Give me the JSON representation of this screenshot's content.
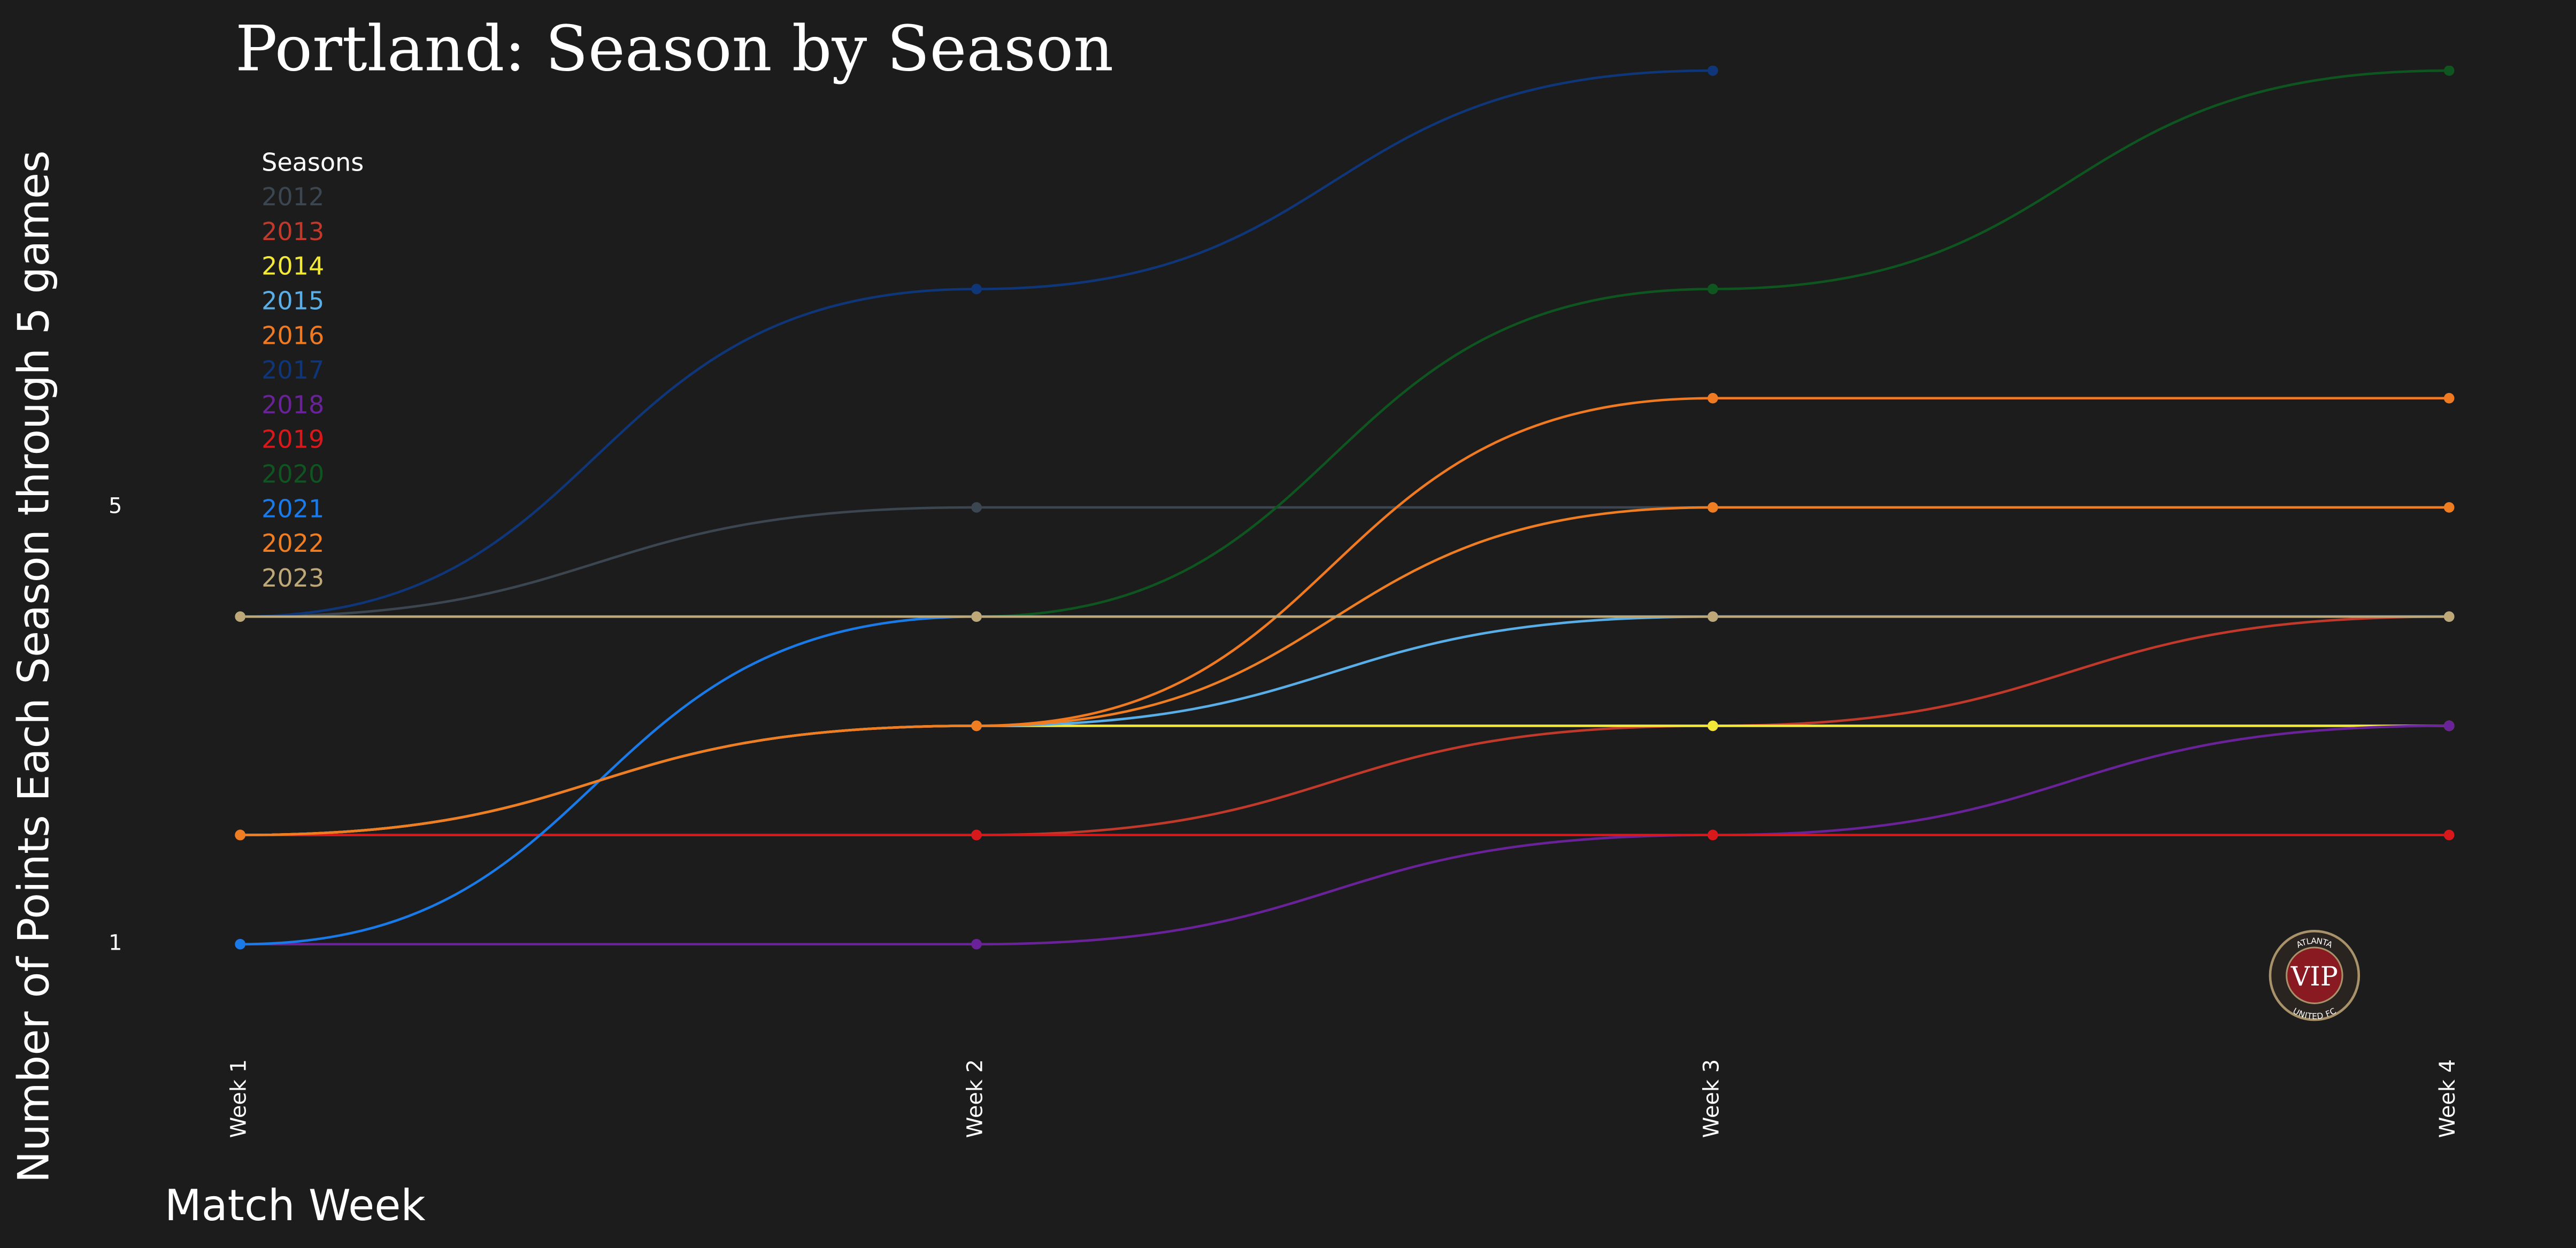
{
  "chart_data": {
    "type": "line",
    "title": "Portland: Season by Season",
    "x_label": "Match Week",
    "y_label": "Number of Points Each Season through 5 games",
    "legend_title": "Seasons",
    "legend_position": "upper left",
    "categories": [
      "Week 1",
      "Week 2",
      "Week 3",
      "Week 4"
    ],
    "ylim": [
      0,
      9
    ],
    "yticks": [
      1,
      5
    ],
    "grid": false,
    "logo_text": "VIP",
    "logo_ring_top": "ATLANTA",
    "logo_ring_bottom": "UNITED FC",
    "series": [
      {
        "name": "2012",
        "color": "#3b4650",
        "values": [
          4,
          5,
          5,
          null
        ]
      },
      {
        "name": "2013",
        "color": "#c0392b",
        "values": [
          2,
          2,
          3,
          4
        ]
      },
      {
        "name": "2014",
        "color": "#f2e83a",
        "values": [
          2,
          3,
          3,
          3
        ]
      },
      {
        "name": "2015",
        "color": "#5aaee8",
        "values": [
          2,
          3,
          4,
          4
        ]
      },
      {
        "name": "2016",
        "color": "#f07a22",
        "values": [
          2,
          3,
          6,
          6
        ]
      },
      {
        "name": "2017",
        "color": "#0f3678",
        "values": [
          4,
          7,
          9,
          null
        ]
      },
      {
        "name": "2018",
        "color": "#6a2299",
        "values": [
          1,
          1,
          2,
          3
        ]
      },
      {
        "name": "2019",
        "color": "#d7191c",
        "values": [
          2,
          2,
          2,
          2
        ]
      },
      {
        "name": "2020",
        "color": "#0e5520",
        "values": [
          4,
          4,
          7,
          9
        ]
      },
      {
        "name": "2021",
        "color": "#1a7ae8",
        "values": [
          1,
          4,
          4,
          4
        ]
      },
      {
        "name": "2022",
        "color": "#ef7d22",
        "values": [
          2,
          3,
          5,
          5
        ]
      },
      {
        "name": "2023",
        "color": "#bfa878",
        "values": [
          4,
          4,
          4,
          4
        ]
      }
    ]
  }
}
